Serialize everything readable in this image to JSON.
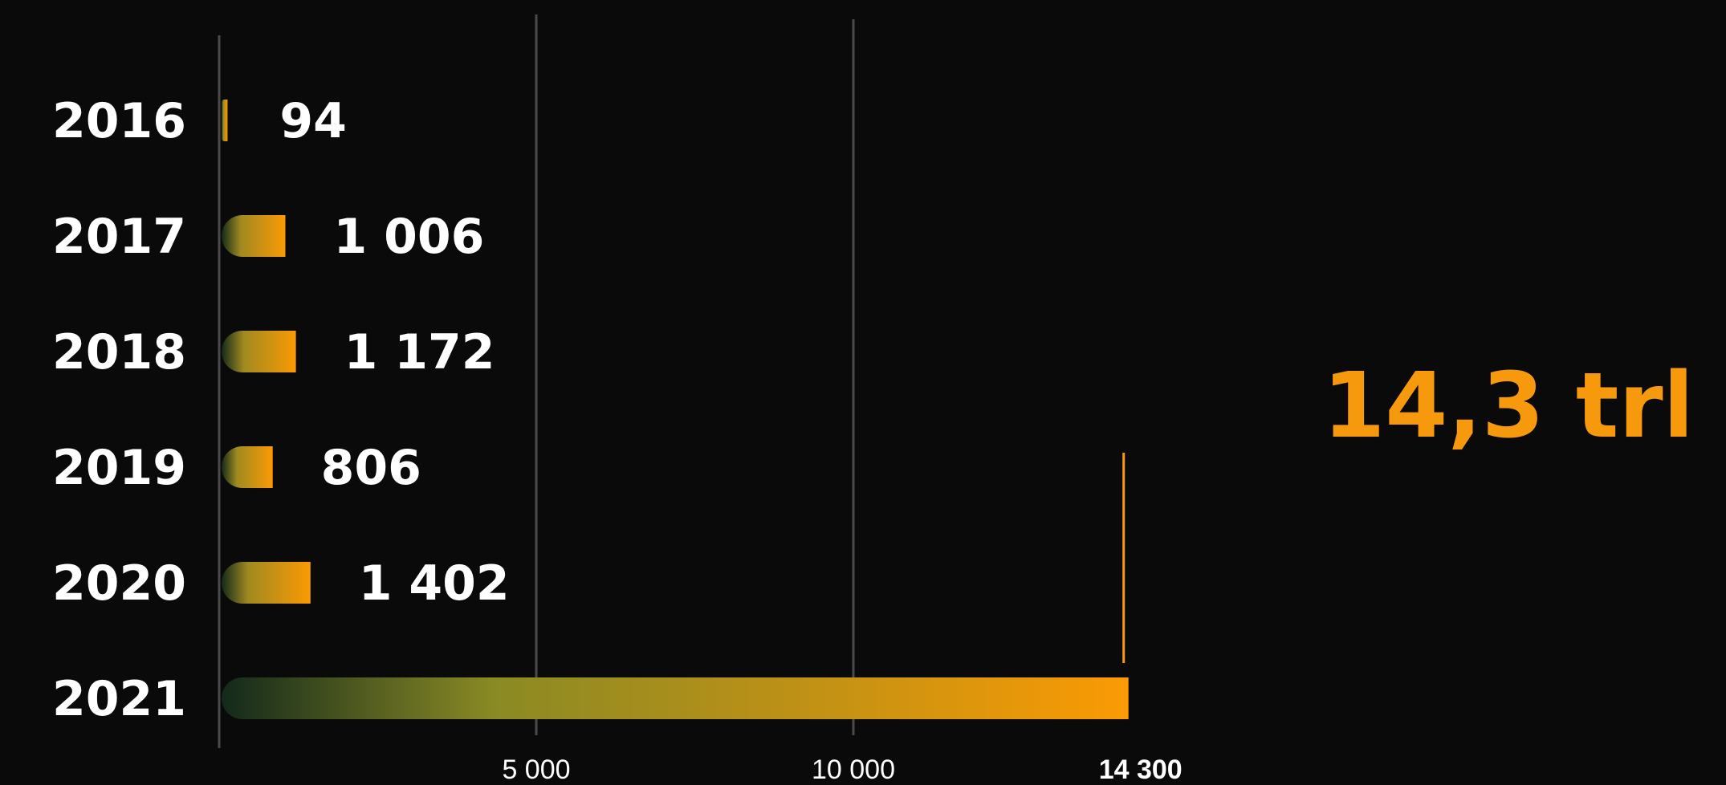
{
  "chart_data": {
    "type": "bar",
    "orientation": "horizontal",
    "categories": [
      "2016",
      "2017",
      "2018",
      "2019",
      "2020",
      "2021"
    ],
    "values": [
      94,
      1006,
      1172,
      806,
      1402,
      14300
    ],
    "value_labels": [
      "94",
      "1 006",
      "1 172",
      "806",
      "1 402",
      ""
    ],
    "xlim": [
      0,
      16000
    ],
    "x_ticks": [
      5000,
      10000,
      14300
    ],
    "x_tick_labels": [
      "5 000",
      "10 000",
      "14 300"
    ],
    "grid": true,
    "callout": {
      "text": "14,3 trl",
      "value": 14300,
      "category": "2021"
    },
    "colors": {
      "background": "#0a0a0a",
      "bar_start": "#13291b",
      "bar_mid": "#a08a20",
      "bar_end": "#fb9a04",
      "accent": "#f7990c",
      "text": "#ffffff",
      "grid": "#4a4a4a"
    }
  }
}
